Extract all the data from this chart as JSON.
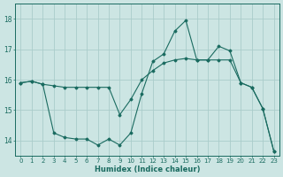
{
  "title": "",
  "xlabel": "Humidex (Indice chaleur)",
  "background_color": "#cce5e3",
  "grid_color": "#aaccca",
  "line_color": "#1a6b60",
  "line1_x": [
    0,
    1,
    2,
    3,
    4,
    5,
    6,
    7,
    8,
    9,
    10,
    11,
    12,
    13,
    14,
    15,
    16,
    17,
    18,
    19,
    20,
    21,
    22,
    23
  ],
  "line1_y": [
    15.9,
    15.95,
    15.85,
    15.8,
    15.75,
    15.75,
    15.75,
    15.75,
    15.75,
    14.85,
    15.35,
    16.0,
    16.3,
    16.55,
    16.65,
    16.7,
    16.65,
    16.65,
    16.65,
    16.65,
    15.9,
    15.75,
    15.05,
    13.65
  ],
  "line2_x": [
    0,
    1,
    2,
    3,
    4,
    5,
    6,
    7,
    8,
    9,
    10,
    11,
    12,
    13,
    14,
    15,
    16,
    17,
    18,
    19,
    20,
    21,
    22,
    23
  ],
  "line2_y": [
    15.9,
    15.95,
    15.85,
    14.25,
    14.1,
    14.05,
    14.05,
    13.85,
    14.05,
    13.85,
    14.25,
    15.55,
    16.6,
    16.85,
    17.6,
    17.95,
    16.65,
    16.65,
    17.1,
    16.95,
    15.9,
    15.75,
    15.05,
    13.65
  ],
  "xlim": [
    -0.5,
    23.5
  ],
  "ylim": [
    13.5,
    18.5
  ],
  "yticks": [
    14,
    15,
    16,
    17,
    18
  ],
  "xticks": [
    0,
    1,
    2,
    3,
    4,
    5,
    6,
    7,
    8,
    9,
    10,
    11,
    12,
    13,
    14,
    15,
    16,
    17,
    18,
    19,
    20,
    21,
    22,
    23
  ],
  "xlabel_fontsize": 6.0,
  "tick_fontsize": 5.0,
  "ytick_fontsize": 5.5
}
